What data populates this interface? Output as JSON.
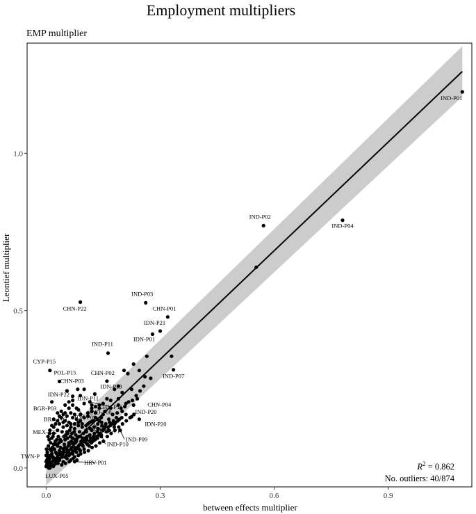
{
  "chart_data": {
    "type": "scatter",
    "title": "Employment multipliers",
    "subtitle": "EMP multiplier",
    "xlabel": "between effects multiplier",
    "ylabel": "Leontief multiplier",
    "xlim": [
      -0.05,
      1.12
    ],
    "ylim": [
      -0.06,
      1.35
    ],
    "x_ticks": [
      0.0,
      0.3,
      0.6,
      0.9
    ],
    "x_tick_labels": [
      "0.0",
      "0.3",
      "0.6",
      "0.9"
    ],
    "y_ticks": [
      0.0,
      0.5,
      1.0
    ],
    "y_tick_labels": [
      "0.0",
      "0.5",
      "1.0"
    ],
    "grid": false,
    "r2_label": "R",
    "r2_exponent": "2",
    "r2_value": " = 0.862",
    "outliers_label": "No. outliers: 40/874",
    "fit": {
      "type": "linear",
      "x0": 0.0,
      "y0": 0.0,
      "x1": 1.095,
      "y1": 1.26,
      "band_x0": 0.0,
      "band_lo0": -0.055,
      "band_hi0": 0.055,
      "band_x1": 1.095,
      "band_lo1": 1.18,
      "band_hi1": 1.34
    },
    "labeled_points": [
      {
        "label": "IND-P01",
        "x": 1.095,
        "y": 1.195
      },
      {
        "label": "IND-P02",
        "x": 0.572,
        "y": 0.77
      },
      {
        "label": "IND-P04",
        "x": 0.78,
        "y": 0.787
      },
      {
        "label": "CHN-P22",
        "x": 0.09,
        "y": 0.527
      },
      {
        "label": "IND-P03",
        "x": 0.262,
        "y": 0.525
      },
      {
        "label": "CHN-P01",
        "x": 0.32,
        "y": 0.48
      },
      {
        "label": "IDN-P21",
        "x": 0.3,
        "y": 0.435
      },
      {
        "label": "IDN-P01",
        "x": 0.28,
        "y": 0.425
      },
      {
        "label": "IND-P11",
        "x": 0.163,
        "y": 0.365
      },
      {
        "label": "CYP-P15",
        "x": 0.01,
        "y": 0.31
      },
      {
        "label": "IND-P07",
        "x": 0.335,
        "y": 0.312
      },
      {
        "label": "POL-P15",
        "x": 0.035,
        "y": 0.275
      },
      {
        "label": "CHN-P02",
        "x": 0.16,
        "y": 0.276
      },
      {
        "label": "CHN-P03",
        "x": 0.083,
        "y": 0.25
      },
      {
        "label": "IDN-P22",
        "x": 0.055,
        "y": 0.245
      },
      {
        "label": "IDN-P13",
        "x": 0.128,
        "y": 0.235
      },
      {
        "label": "IDN-P11",
        "x": 0.07,
        "y": 0.228
      },
      {
        "label": "BGR-P03",
        "x": 0.015,
        "y": 0.21
      },
      {
        "label": "CHN-P04",
        "x": 0.23,
        "y": 0.2
      },
      {
        "label": "IDN-P09",
        "x": 0.085,
        "y": 0.185
      },
      {
        "label": "CHN-P11",
        "x": 0.115,
        "y": 0.21
      },
      {
        "label": "IND-P08",
        "x": 0.155,
        "y": 0.18
      },
      {
        "label": "BRA-P03",
        "x": 0.05,
        "y": 0.175
      },
      {
        "label": "IND-P20",
        "x": 0.225,
        "y": 0.163
      },
      {
        "label": "LUX-P01",
        "x": 0.12,
        "y": 0.148
      },
      {
        "label": "IDN-P20",
        "x": 0.245,
        "y": 0.155
      },
      {
        "label": "MEX-P22",
        "x": 0.015,
        "y": 0.135
      },
      {
        "label": "BGR-P11",
        "x": 0.12,
        "y": 0.12
      },
      {
        "label": "IND-P09",
        "x": 0.195,
        "y": 0.12
      },
      {
        "label": "IND-P10",
        "x": 0.145,
        "y": 0.105
      },
      {
        "label": "TWN-P",
        "x": 0.005,
        "y": 0.04
      },
      {
        "label": "HRV-P01",
        "x": 0.075,
        "y": 0.02
      },
      {
        "label": "LUX-P05",
        "x": 0.01,
        "y": 0.0
      }
    ],
    "points": [
      [
        0.553,
        0.638
      ],
      [
        0.265,
        0.355
      ],
      [
        0.245,
        0.31
      ],
      [
        0.215,
        0.3
      ],
      [
        0.205,
        0.31
      ],
      [
        0.275,
        0.285
      ],
      [
        0.26,
        0.29
      ],
      [
        0.33,
        0.355
      ],
      [
        0.23,
        0.33
      ],
      [
        0.19,
        0.26
      ],
      [
        0.2,
        0.24
      ],
      [
        0.18,
        0.25
      ],
      [
        0.225,
        0.25
      ],
      [
        0.24,
        0.22
      ],
      [
        0.21,
        0.205
      ],
      [
        0.19,
        0.2
      ],
      [
        0.17,
        0.19
      ],
      [
        0.16,
        0.22
      ],
      [
        0.14,
        0.2
      ],
      [
        0.12,
        0.19
      ],
      [
        0.1,
        0.25
      ],
      [
        0.09,
        0.23
      ],
      [
        0.07,
        0.2
      ],
      [
        0.06,
        0.19
      ],
      [
        0.035,
        0.14
      ],
      [
        0.03,
        0.12
      ],
      [
        0.02,
        0.11
      ],
      [
        0.045,
        0.13
      ],
      [
        0.055,
        0.115
      ],
      [
        0.065,
        0.14
      ],
      [
        0.075,
        0.125
      ],
      [
        0.085,
        0.135
      ],
      [
        0.095,
        0.13
      ],
      [
        0.105,
        0.12
      ],
      [
        0.11,
        0.14
      ],
      [
        0.13,
        0.16
      ],
      [
        0.14,
        0.15
      ],
      [
        0.15,
        0.17
      ],
      [
        0.165,
        0.155
      ],
      [
        0.175,
        0.17
      ],
      [
        0.185,
        0.16
      ],
      [
        0.2,
        0.18
      ],
      [
        0.21,
        0.17
      ],
      [
        0.155,
        0.13
      ],
      [
        0.165,
        0.12
      ],
      [
        0.18,
        0.14
      ],
      [
        0.135,
        0.115
      ],
      [
        0.125,
        0.1
      ],
      [
        0.115,
        0.105
      ],
      [
        0.1,
        0.09
      ],
      [
        0.09,
        0.1
      ],
      [
        0.08,
        0.085
      ],
      [
        0.07,
        0.095
      ],
      [
        0.06,
        0.08
      ],
      [
        0.05,
        0.09
      ],
      [
        0.04,
        0.085
      ],
      [
        0.03,
        0.07
      ],
      [
        0.02,
        0.075
      ],
      [
        0.01,
        0.06
      ],
      [
        0.015,
        0.045
      ],
      [
        0.025,
        0.05
      ],
      [
        0.035,
        0.055
      ],
      [
        0.045,
        0.06
      ],
      [
        0.055,
        0.05
      ],
      [
        0.065,
        0.06
      ],
      [
        0.075,
        0.065
      ],
      [
        0.085,
        0.07
      ],
      [
        0.095,
        0.075
      ],
      [
        0.105,
        0.08
      ],
      [
        0.115,
        0.085
      ],
      [
        0.125,
        0.09
      ],
      [
        0.135,
        0.095
      ],
      [
        0.145,
        0.1
      ],
      [
        0.01,
        0.03
      ],
      [
        0.02,
        0.025
      ],
      [
        0.03,
        0.035
      ],
      [
        0.04,
        0.04
      ],
      [
        0.05,
        0.035
      ],
      [
        0.06,
        0.04
      ],
      [
        0.07,
        0.045
      ],
      [
        0.08,
        0.05
      ],
      [
        0.09,
        0.055
      ],
      [
        0.1,
        0.06
      ],
      [
        0.005,
        0.015
      ],
      [
        0.015,
        0.01
      ],
      [
        0.025,
        0.02
      ],
      [
        0.035,
        0.025
      ],
      [
        0.045,
        0.02
      ],
      [
        0.055,
        0.03
      ],
      [
        0.065,
        0.025
      ],
      [
        0.075,
        0.035
      ],
      [
        0.085,
        0.04
      ],
      [
        0.0,
        0.005
      ],
      [
        0.008,
        0.02
      ],
      [
        0.018,
        0.035
      ],
      [
        0.028,
        0.045
      ],
      [
        0.038,
        0.065
      ],
      [
        0.048,
        0.075
      ],
      [
        0.058,
        0.07
      ],
      [
        0.068,
        0.11
      ],
      [
        0.078,
        0.105
      ],
      [
        0.088,
        0.115
      ],
      [
        0.098,
        0.11
      ],
      [
        0.108,
        0.1
      ],
      [
        0.028,
        0.09
      ],
      [
        0.018,
        0.1
      ],
      [
        0.012,
        0.08
      ],
      [
        0.022,
        0.06
      ],
      [
        0.032,
        0.1
      ],
      [
        0.042,
        0.115
      ],
      [
        0.052,
        0.105
      ],
      [
        0.062,
        0.12
      ],
      [
        0.072,
        0.075
      ],
      [
        0.082,
        0.095
      ],
      [
        0.092,
        0.085
      ],
      [
        0.003,
        0.05
      ],
      [
        0.006,
        0.07
      ],
      [
        0.014,
        0.055
      ],
      [
        0.024,
        0.085
      ],
      [
        0.034,
        0.08
      ],
      [
        0.044,
        0.045
      ],
      [
        0.054,
        0.06
      ],
      [
        0.064,
        0.1
      ],
      [
        0.074,
        0.115
      ],
      [
        0.016,
        0.02
      ],
      [
        0.026,
        0.015
      ],
      [
        0.036,
        0.03
      ],
      [
        0.046,
        0.05
      ],
      [
        0.056,
        0.095
      ],
      [
        0.066,
        0.085
      ],
      [
        0.076,
        0.09
      ],
      [
        0.086,
        0.1
      ],
      [
        0.096,
        0.095
      ],
      [
        0.106,
        0.115
      ],
      [
        0.116,
        0.125
      ],
      [
        0.126,
        0.13
      ],
      [
        0.136,
        0.14
      ],
      [
        0.146,
        0.145
      ],
      [
        0.11,
        0.165
      ],
      [
        0.13,
        0.175
      ],
      [
        0.12,
        0.18
      ],
      [
        0.1,
        0.16
      ],
      [
        0.09,
        0.15
      ],
      [
        0.08,
        0.155
      ],
      [
        0.07,
        0.16
      ],
      [
        0.06,
        0.145
      ],
      [
        0.05,
        0.15
      ],
      [
        0.04,
        0.16
      ],
      [
        0.03,
        0.15
      ],
      [
        0.02,
        0.13
      ],
      [
        0.01,
        0.12
      ],
      [
        0.005,
        0.1
      ],
      [
        0.008,
        0.09
      ],
      [
        0.004,
        0.035
      ],
      [
        0.012,
        0.04
      ],
      [
        0.002,
        0.025
      ],
      [
        0.017,
        0.065
      ],
      [
        0.027,
        0.075
      ],
      [
        0.037,
        0.09
      ],
      [
        0.047,
        0.1
      ],
      [
        0.057,
        0.11
      ],
      [
        0.067,
        0.065
      ],
      [
        0.077,
        0.08
      ],
      [
        0.087,
        0.06
      ],
      [
        0.097,
        0.07
      ],
      [
        0.107,
        0.09
      ],
      [
        0.117,
        0.095
      ],
      [
        0.127,
        0.11
      ],
      [
        0.137,
        0.125
      ],
      [
        0.147,
        0.135
      ],
      [
        0.157,
        0.14
      ],
      [
        0.167,
        0.145
      ],
      [
        0.177,
        0.15
      ],
      [
        0.187,
        0.175
      ],
      [
        0.197,
        0.19
      ],
      [
        0.207,
        0.195
      ],
      [
        0.217,
        0.21
      ],
      [
        0.227,
        0.215
      ],
      [
        0.237,
        0.23
      ],
      [
        0.247,
        0.245
      ],
      [
        0.257,
        0.26
      ],
      [
        0.06,
        0.21
      ],
      [
        0.07,
        0.215
      ],
      [
        0.05,
        0.2
      ],
      [
        0.09,
        0.17
      ],
      [
        0.11,
        0.175
      ],
      [
        0.03,
        0.175
      ],
      [
        0.04,
        0.18
      ],
      [
        0.02,
        0.155
      ],
      [
        0.025,
        0.14
      ],
      [
        0.015,
        0.095
      ],
      [
        0.009,
        0.11
      ],
      [
        0.001,
        0.06
      ],
      [
        0.011,
        0.005
      ],
      [
        0.021,
        0.01
      ],
      [
        0.031,
        0.015
      ],
      [
        0.041,
        0.01
      ],
      [
        0.051,
        0.015
      ],
      [
        0.061,
        0.02
      ],
      [
        0.071,
        0.03
      ],
      [
        0.081,
        0.025
      ],
      [
        0.091,
        0.045
      ],
      [
        0.101,
        0.05
      ],
      [
        0.111,
        0.055
      ],
      [
        0.121,
        0.065
      ],
      [
        0.131,
        0.07
      ],
      [
        0.141,
        0.08
      ],
      [
        0.151,
        0.085
      ],
      [
        0.161,
        0.1
      ],
      [
        0.171,
        0.11
      ],
      [
        0.181,
        0.12
      ],
      [
        0.191,
        0.13
      ],
      [
        0.201,
        0.14
      ],
      [
        0.211,
        0.15
      ],
      [
        0.221,
        0.16
      ],
      [
        0.231,
        0.17
      ],
      [
        0.19,
        0.22
      ],
      [
        0.17,
        0.215
      ],
      [
        0.15,
        0.205
      ],
      [
        0.14,
        0.19
      ],
      [
        0.13,
        0.195
      ],
      [
        0.12,
        0.2
      ],
      [
        0.1,
        0.205
      ],
      [
        0.08,
        0.19
      ],
      [
        0.075,
        0.17
      ],
      [
        0.065,
        0.175
      ],
      [
        0.055,
        0.165
      ],
      [
        0.045,
        0.17
      ],
      [
        0.035,
        0.165
      ],
      [
        0.045,
        0.145
      ],
      [
        0.055,
        0.135
      ],
      [
        0.065,
        0.13
      ],
      [
        0.075,
        0.14
      ],
      [
        0.085,
        0.145
      ],
      [
        0.095,
        0.14
      ],
      [
        0.105,
        0.135
      ],
      [
        0.115,
        0.145
      ],
      [
        0.125,
        0.15
      ],
      [
        0.135,
        0.155
      ],
      [
        0.145,
        0.16
      ],
      [
        0.0,
        0.04
      ],
      [
        0.0,
        0.02
      ],
      [
        0.002,
        0.01
      ],
      [
        0.007,
        0.0
      ],
      [
        0.013,
        0.015
      ],
      [
        0.019,
        0.005
      ],
      [
        0.023,
        0.03
      ],
      [
        0.029,
        0.025
      ],
      [
        0.033,
        0.045
      ],
      [
        0.039,
        0.05
      ],
      [
        0.043,
        0.035
      ],
      [
        0.049,
        0.065
      ],
      [
        0.053,
        0.04
      ],
      [
        0.059,
        0.055
      ],
      [
        0.063,
        0.045
      ],
      [
        0.069,
        0.05
      ],
      [
        0.073,
        0.055
      ],
      [
        0.079,
        0.06
      ],
      [
        0.083,
        0.065
      ],
      [
        0.089,
        0.075
      ],
      [
        0.093,
        0.08
      ],
      [
        0.099,
        0.085
      ],
      [
        0.103,
        0.095
      ],
      [
        0.109,
        0.075
      ],
      [
        0.113,
        0.07
      ],
      [
        0.119,
        0.08
      ],
      [
        0.123,
        0.085
      ],
      [
        0.129,
        0.09
      ],
      [
        0.133,
        0.1
      ],
      [
        0.139,
        0.105
      ],
      [
        0.143,
        0.11
      ],
      [
        0.149,
        0.12
      ],
      [
        0.153,
        0.125
      ],
      [
        0.159,
        0.115
      ],
      [
        0.163,
        0.13
      ],
      [
        0.169,
        0.135
      ],
      [
        0.173,
        0.14
      ],
      [
        0.179,
        0.13
      ],
      [
        0.183,
        0.145
      ],
      [
        0.189,
        0.15
      ],
      [
        0.193,
        0.155
      ],
      [
        0.199,
        0.16
      ]
    ]
  }
}
